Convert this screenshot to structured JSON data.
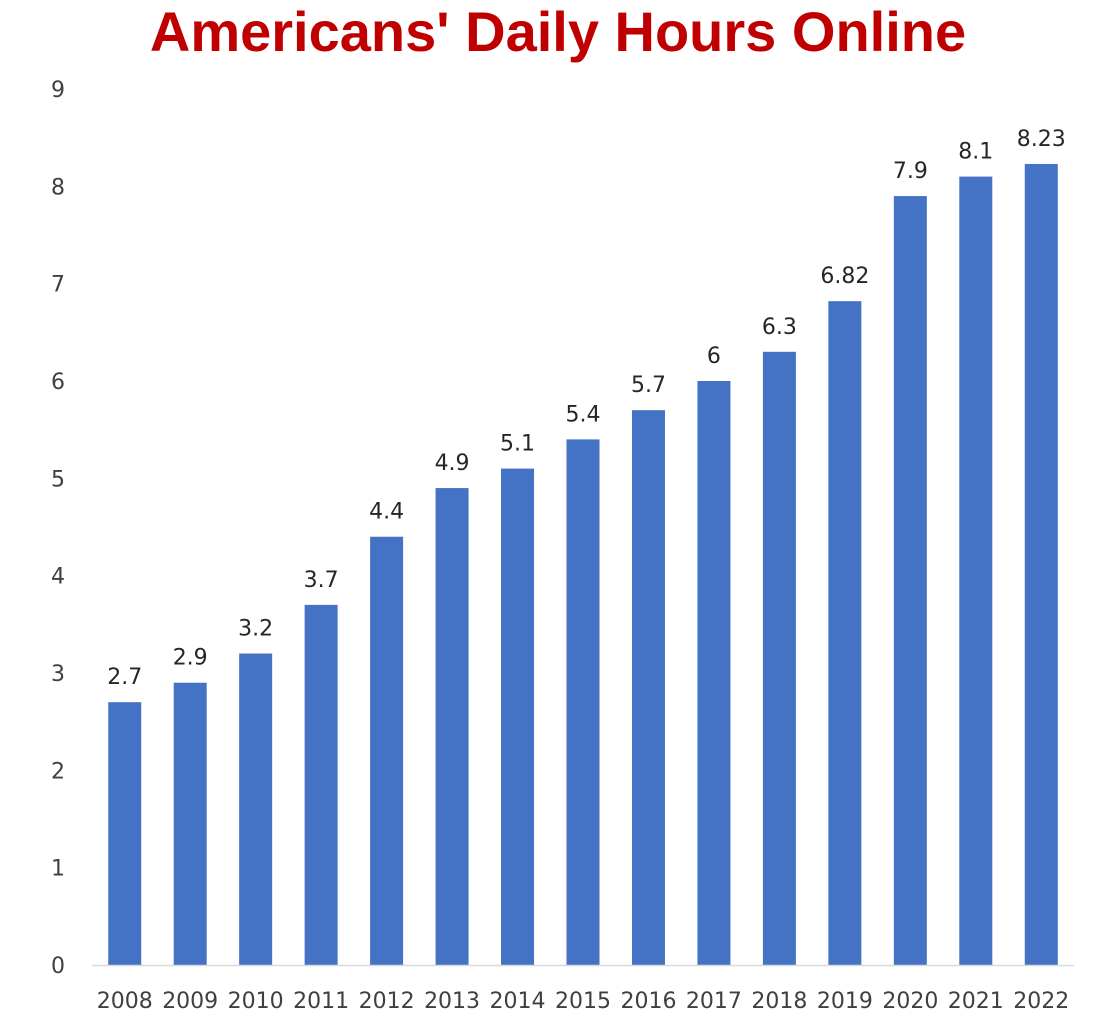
{
  "chart_data": {
    "type": "bar",
    "title": "Americans' Daily Hours Online",
    "xlabel": "",
    "ylabel": "",
    "categories": [
      "2008",
      "2009",
      "2010",
      "2011",
      "2012",
      "2013",
      "2014",
      "2015",
      "2016",
      "2017",
      "2018",
      "2019",
      "2020",
      "2021",
      "2022"
    ],
    "values": [
      2.7,
      2.9,
      3.2,
      3.7,
      4.4,
      4.9,
      5.1,
      5.4,
      5.7,
      6,
      6.3,
      6.82,
      7.9,
      8.1,
      8.23
    ],
    "data_labels": [
      "2.7",
      "2.9",
      "3.2",
      "3.7",
      "4.4",
      "4.9",
      "5.1",
      "5.4",
      "5.7",
      "6",
      "6.3",
      "6.82",
      "7.9",
      "8.1",
      "8.23"
    ],
    "ylim": [
      0,
      9
    ],
    "yticks": [
      "0",
      "1",
      "2",
      "3",
      "4",
      "5",
      "6",
      "7",
      "8",
      "9"
    ],
    "grid": false,
    "legend": "none",
    "colors": {
      "bar": "#4472C4",
      "title": "#C00000",
      "axis_line": "#D9D9D9",
      "tick_text": "#404040",
      "label_text": "#262626"
    }
  }
}
